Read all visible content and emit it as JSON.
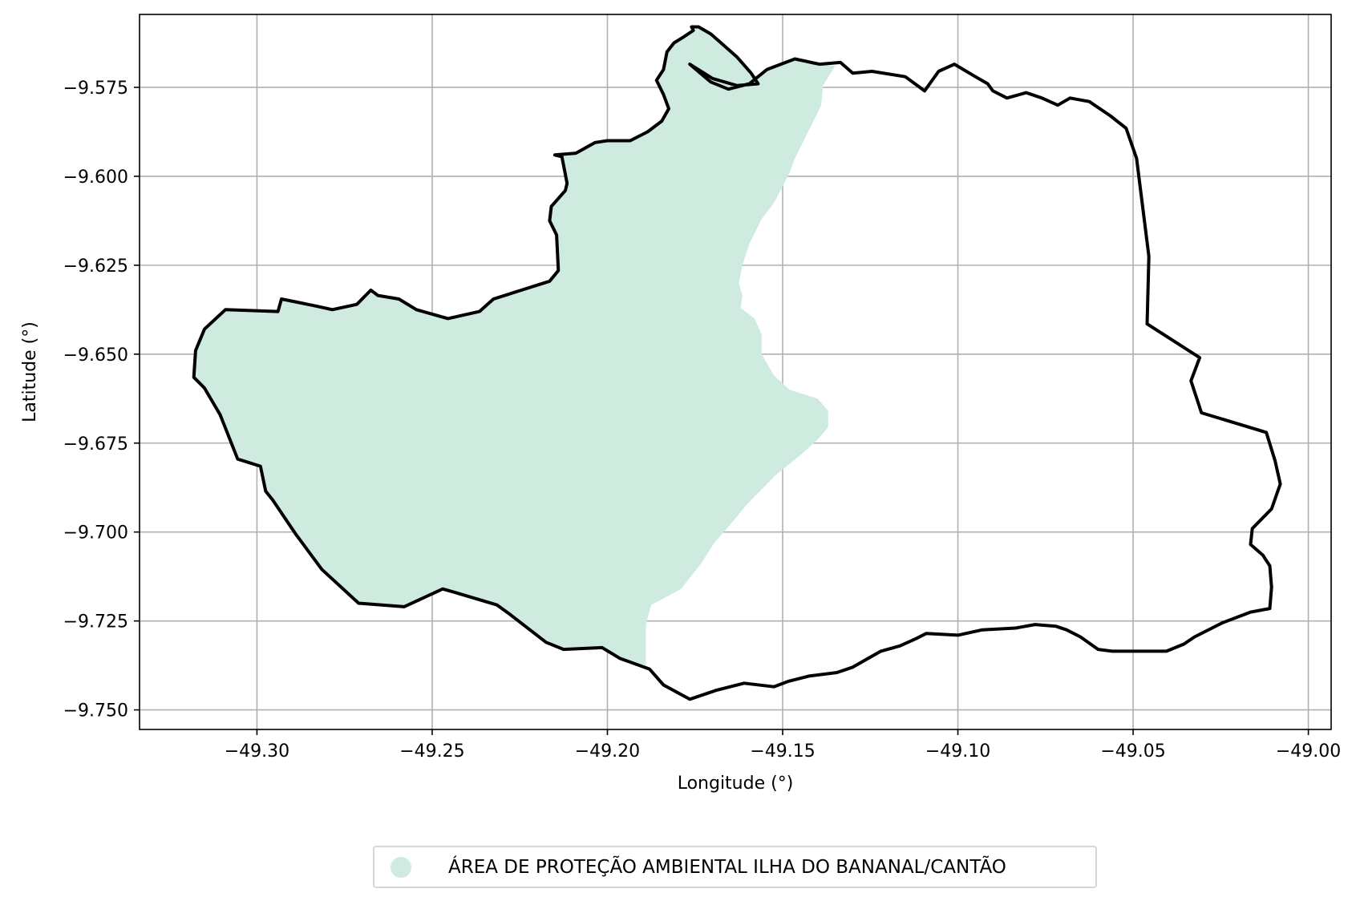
{
  "chart_data": {
    "type": "map",
    "xlabel": "Longitude (°)",
    "ylabel": "Latitude (°)",
    "xlim": [
      -49.3335,
      -48.9935
    ],
    "ylim": [
      -9.7555,
      -9.5545
    ],
    "xticks": [
      {
        "value": -49.3,
        "label": "−49.30"
      },
      {
        "value": -49.25,
        "label": "−49.25"
      },
      {
        "value": -49.2,
        "label": "−49.20"
      },
      {
        "value": -49.15,
        "label": "−49.15"
      },
      {
        "value": -49.1,
        "label": "−49.10"
      },
      {
        "value": -49.05,
        "label": "−49.05"
      },
      {
        "value": -49.0,
        "label": "−49.00"
      }
    ],
    "yticks": [
      {
        "value": -9.575,
        "label": "−9.575"
      },
      {
        "value": -9.6,
        "label": "−9.600"
      },
      {
        "value": -9.625,
        "label": "−9.625"
      },
      {
        "value": -9.65,
        "label": "−9.650"
      },
      {
        "value": -9.675,
        "label": "−9.675"
      },
      {
        "value": -9.7,
        "label": "−9.700"
      },
      {
        "value": -9.725,
        "label": "−9.725"
      },
      {
        "value": -9.75,
        "label": "−9.750"
      }
    ],
    "grid": true,
    "legend": {
      "placement": "bottom-center",
      "entries": [
        {
          "label": "ÁREA DE PROTEÇÃO AMBIENTAL ILHA DO BANANAL/CANTÃO",
          "color": "#cfebdf"
        }
      ]
    },
    "colors": {
      "protected_area_fill": "#cfebdf",
      "boundary": "#000000",
      "grid": "#b0b0b0"
    },
    "boundary": [
      [
        -49.1765,
        -9.5685
      ],
      [
        -49.1705,
        -9.5735
      ],
      [
        -49.1655,
        -9.5755
      ],
      [
        -49.1595,
        -9.574
      ],
      [
        -49.1545,
        -9.57
      ],
      [
        -49.1465,
        -9.567
      ],
      [
        -49.1395,
        -9.5685
      ],
      [
        -49.1335,
        -9.568
      ],
      [
        -49.13,
        -9.571
      ],
      [
        -49.1245,
        -9.5705
      ],
      [
        -49.115,
        -9.572
      ],
      [
        -49.1095,
        -9.576
      ],
      [
        -49.1055,
        -9.5705
      ],
      [
        -49.101,
        -9.5685
      ],
      [
        -49.095,
        -9.572
      ],
      [
        -49.0915,
        -9.574
      ],
      [
        -49.09,
        -9.576
      ],
      [
        -49.086,
        -9.578
      ],
      [
        -49.0805,
        -9.5765
      ],
      [
        -49.076,
        -9.578
      ],
      [
        -49.0715,
        -9.58
      ],
      [
        -49.068,
        -9.578
      ],
      [
        -49.0625,
        -9.579
      ],
      [
        -49.0565,
        -9.583
      ],
      [
        -49.052,
        -9.5865
      ],
      [
        -49.049,
        -9.595
      ],
      [
        -49.0455,
        -9.6225
      ],
      [
        -49.046,
        -9.6415
      ],
      [
        -49.031,
        -9.651
      ],
      [
        -49.0335,
        -9.6575
      ],
      [
        -49.0305,
        -9.6665
      ],
      [
        -49.012,
        -9.672
      ],
      [
        -49.0095,
        -9.68
      ],
      [
        -49.008,
        -9.6865
      ],
      [
        -49.0105,
        -9.6935
      ],
      [
        -49.016,
        -9.699
      ],
      [
        -49.0165,
        -9.7035
      ],
      [
        -49.013,
        -9.7065
      ],
      [
        -49.011,
        -9.7095
      ],
      [
        -49.0105,
        -9.7155
      ],
      [
        -49.011,
        -9.7215
      ],
      [
        -49.0165,
        -9.7225
      ],
      [
        -49.0245,
        -9.7255
      ],
      [
        -49.0325,
        -9.7295
      ],
      [
        -49.0355,
        -9.7315
      ],
      [
        -49.0405,
        -9.7335
      ],
      [
        -49.0445,
        -9.7335
      ],
      [
        -49.056,
        -9.7335
      ],
      [
        -49.06,
        -9.733
      ],
      [
        -49.065,
        -9.7295
      ],
      [
        -49.069,
        -9.7275
      ],
      [
        -49.072,
        -9.7265
      ],
      [
        -49.078,
        -9.726
      ],
      [
        -49.0835,
        -9.727
      ],
      [
        -49.093,
        -9.7275
      ],
      [
        -49.1,
        -9.729
      ],
      [
        -49.109,
        -9.7285
      ],
      [
        -49.112,
        -9.73
      ],
      [
        -49.1165,
        -9.732
      ],
      [
        -49.122,
        -9.7335
      ],
      [
        -49.13,
        -9.738
      ],
      [
        -49.1345,
        -9.7395
      ],
      [
        -49.1425,
        -9.7405
      ],
      [
        -49.1485,
        -9.742
      ],
      [
        -49.1525,
        -9.7435
      ],
      [
        -49.161,
        -9.7425
      ],
      [
        -49.169,
        -9.7445
      ],
      [
        -49.1765,
        -9.747
      ],
      [
        -49.184,
        -9.743
      ],
      [
        -49.188,
        -9.7385
      ],
      [
        -49.1965,
        -9.7355
      ],
      [
        -49.2015,
        -9.7325
      ],
      [
        -49.2125,
        -9.733
      ],
      [
        -49.2175,
        -9.731
      ],
      [
        -49.228,
        -9.723
      ],
      [
        -49.2315,
        -9.7205
      ],
      [
        -49.2435,
        -9.717
      ],
      [
        -49.247,
        -9.716
      ],
      [
        -49.258,
        -9.721
      ],
      [
        -49.271,
        -9.72
      ],
      [
        -49.2815,
        -9.7105
      ],
      [
        -49.289,
        -9.7005
      ],
      [
        -49.2955,
        -9.691
      ],
      [
        -49.2975,
        -9.6885
      ],
      [
        -49.299,
        -9.6815
      ],
      [
        -49.3055,
        -9.6795
      ],
      [
        -49.3105,
        -9.667
      ],
      [
        -49.315,
        -9.6595
      ],
      [
        -49.318,
        -9.6565
      ],
      [
        -49.3175,
        -9.649
      ],
      [
        -49.315,
        -9.643
      ],
      [
        -49.309,
        -9.6375
      ],
      [
        -49.294,
        -9.638
      ],
      [
        -49.293,
        -9.6345
      ],
      [
        -49.283,
        -9.6365
      ],
      [
        -49.2785,
        -9.6375
      ],
      [
        -49.2715,
        -9.636
      ],
      [
        -49.2675,
        -9.632
      ],
      [
        -49.2655,
        -9.6335
      ],
      [
        -49.2595,
        -9.6345
      ],
      [
        -49.2545,
        -9.6375
      ],
      [
        -49.2455,
        -9.64
      ],
      [
        -49.2365,
        -9.638
      ],
      [
        -49.2325,
        -9.6345
      ],
      [
        -49.2245,
        -9.632
      ],
      [
        -49.2165,
        -9.6295
      ],
      [
        -49.214,
        -9.6265
      ],
      [
        -49.2145,
        -9.6165
      ],
      [
        -49.2165,
        -9.6125
      ],
      [
        -49.216,
        -9.6085
      ],
      [
        -49.212,
        -9.604
      ],
      [
        -49.2115,
        -9.602
      ],
      [
        -49.213,
        -9.5945
      ],
      [
        -49.215,
        -9.594
      ],
      [
        -49.209,
        -9.5935
      ],
      [
        -49.2035,
        -9.5905
      ],
      [
        -49.2,
        -9.59
      ],
      [
        -49.1935,
        -9.59
      ],
      [
        -49.1885,
        -9.5875
      ],
      [
        -49.1845,
        -9.5845
      ],
      [
        -49.1825,
        -9.581
      ],
      [
        -49.184,
        -9.577
      ],
      [
        -49.186,
        -9.573
      ],
      [
        -49.184,
        -9.57
      ],
      [
        -49.183,
        -9.565
      ],
      [
        -49.181,
        -9.5625
      ],
      [
        -49.1785,
        -9.561
      ],
      [
        -49.1755,
        -9.559
      ],
      [
        -49.176,
        -9.558
      ],
      [
        -49.174,
        -9.558
      ],
      [
        -49.1705,
        -9.56
      ],
      [
        -49.167,
        -9.563
      ],
      [
        -49.163,
        -9.5665
      ],
      [
        -49.159,
        -9.571
      ],
      [
        -49.157,
        -9.574
      ],
      [
        -49.163,
        -9.5745
      ],
      [
        -49.17,
        -9.5725
      ],
      [
        -49.1765,
        -9.5685
      ]
    ],
    "protected_area": [
      [
        -49.135,
        -9.569
      ],
      [
        -49.1385,
        -9.5745
      ],
      [
        -49.139,
        -9.58
      ],
      [
        -49.142,
        -9.586
      ],
      [
        -49.1465,
        -9.595
      ],
      [
        -49.148,
        -9.599
      ],
      [
        -49.1525,
        -9.6075
      ],
      [
        -49.156,
        -9.612
      ],
      [
        -49.1595,
        -9.619
      ],
      [
        -49.1615,
        -9.625
      ],
      [
        -49.1625,
        -9.63
      ],
      [
        -49.1615,
        -9.6335
      ],
      [
        -49.162,
        -9.637
      ],
      [
        -49.158,
        -9.64
      ],
      [
        -49.156,
        -9.6445
      ],
      [
        -49.156,
        -9.65
      ],
      [
        -49.1525,
        -9.656
      ],
      [
        -49.148,
        -9.66
      ],
      [
        -49.14,
        -9.6625
      ],
      [
        -49.137,
        -9.666
      ],
      [
        -49.137,
        -9.6705
      ],
      [
        -49.14,
        -9.674
      ],
      [
        -49.1445,
        -9.678
      ],
      [
        -49.152,
        -9.684
      ],
      [
        -49.16,
        -9.692
      ],
      [
        -49.165,
        -9.698
      ],
      [
        -49.1695,
        -9.703
      ],
      [
        -49.173,
        -9.7085
      ],
      [
        -49.179,
        -9.716
      ],
      [
        -49.1875,
        -9.7205
      ],
      [
        -49.189,
        -9.726
      ],
      [
        -49.189,
        -9.7375
      ],
      [
        -49.1965,
        -9.7355
      ],
      [
        -49.2015,
        -9.7325
      ],
      [
        -49.2125,
        -9.733
      ],
      [
        -49.2175,
        -9.731
      ],
      [
        -49.228,
        -9.723
      ],
      [
        -49.2315,
        -9.7205
      ],
      [
        -49.2435,
        -9.717
      ],
      [
        -49.247,
        -9.716
      ],
      [
        -49.258,
        -9.721
      ],
      [
        -49.271,
        -9.72
      ],
      [
        -49.2815,
        -9.7105
      ],
      [
        -49.289,
        -9.7005
      ],
      [
        -49.2955,
        -9.691
      ],
      [
        -49.2975,
        -9.6885
      ],
      [
        -49.299,
        -9.6815
      ],
      [
        -49.3055,
        -9.6795
      ],
      [
        -49.3105,
        -9.667
      ],
      [
        -49.315,
        -9.6595
      ],
      [
        -49.318,
        -9.6565
      ],
      [
        -49.3175,
        -9.649
      ],
      [
        -49.315,
        -9.643
      ],
      [
        -49.309,
        -9.6375
      ],
      [
        -49.294,
        -9.638
      ],
      [
        -49.293,
        -9.6345
      ],
      [
        -49.283,
        -9.6365
      ],
      [
        -49.2785,
        -9.6375
      ],
      [
        -49.2715,
        -9.636
      ],
      [
        -49.2675,
        -9.632
      ],
      [
        -49.2655,
        -9.6335
      ],
      [
        -49.2595,
        -9.6345
      ],
      [
        -49.2545,
        -9.6375
      ],
      [
        -49.2455,
        -9.64
      ],
      [
        -49.2365,
        -9.638
      ],
      [
        -49.2325,
        -9.6345
      ],
      [
        -49.2245,
        -9.632
      ],
      [
        -49.2165,
        -9.6295
      ],
      [
        -49.214,
        -9.6265
      ],
      [
        -49.2145,
        -9.6165
      ],
      [
        -49.2165,
        -9.6125
      ],
      [
        -49.216,
        -9.6085
      ],
      [
        -49.212,
        -9.604
      ],
      [
        -49.2115,
        -9.602
      ],
      [
        -49.213,
        -9.5945
      ],
      [
        -49.215,
        -9.594
      ],
      [
        -49.209,
        -9.5935
      ],
      [
        -49.2035,
        -9.5905
      ],
      [
        -49.2,
        -9.59
      ],
      [
        -49.1935,
        -9.59
      ],
      [
        -49.1885,
        -9.5875
      ],
      [
        -49.1845,
        -9.5845
      ],
      [
        -49.1825,
        -9.581
      ],
      [
        -49.184,
        -9.577
      ],
      [
        -49.186,
        -9.573
      ],
      [
        -49.184,
        -9.57
      ],
      [
        -49.183,
        -9.565
      ],
      [
        -49.181,
        -9.5625
      ],
      [
        -49.1785,
        -9.561
      ],
      [
        -49.1755,
        -9.559
      ],
      [
        -49.176,
        -9.558
      ],
      [
        -49.174,
        -9.558
      ],
      [
        -49.1705,
        -9.56
      ],
      [
        -49.167,
        -9.563
      ],
      [
        -49.163,
        -9.5665
      ],
      [
        -49.159,
        -9.571
      ],
      [
        -49.157,
        -9.574
      ],
      [
        -49.163,
        -9.5745
      ],
      [
        -49.1545,
        -9.57
      ],
      [
        -49.1465,
        -9.567
      ],
      [
        -49.1395,
        -9.5685
      ],
      [
        -49.135,
        -9.569
      ]
    ]
  }
}
